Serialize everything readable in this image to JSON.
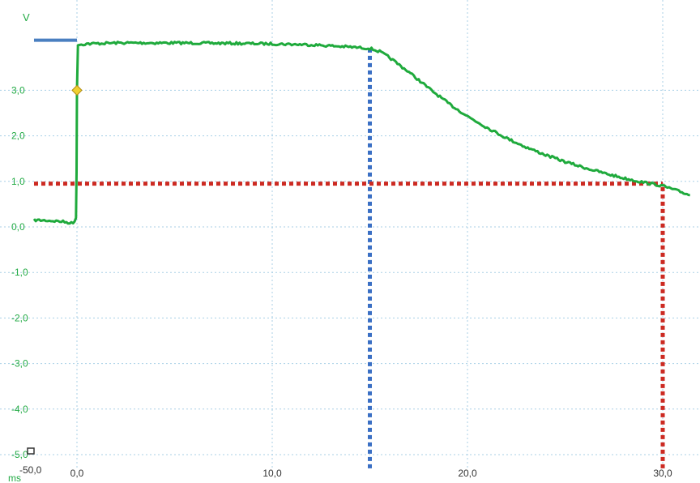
{
  "chart_data": {
    "type": "line",
    "title": "",
    "xlabel": "",
    "ylabel": "V",
    "y_unit_label": "V",
    "x_unit_label": "ms",
    "xlim": [
      -2.3,
      31.4
    ],
    "ylim": [
      -5.0,
      4.4
    ],
    "grid": true,
    "grid_style": "dotted",
    "x_ticks": [
      {
        "value": 0,
        "label": "0,0"
      },
      {
        "value": 10,
        "label": "10,0"
      },
      {
        "value": 20,
        "label": "20,0"
      },
      {
        "value": 30,
        "label": "30,0"
      }
    ],
    "x_origin_label": "-50,0",
    "y_ticks": [
      {
        "value": 3,
        "label": "3,0"
      },
      {
        "value": 2,
        "label": "2,0"
      },
      {
        "value": 1,
        "label": "1,0"
      },
      {
        "value": 0,
        "label": "0,0"
      },
      {
        "value": -1,
        "label": "-1,0"
      },
      {
        "value": -2,
        "label": "-2,0"
      },
      {
        "value": -3,
        "label": "-3,0"
      },
      {
        "value": -4,
        "label": "-4,0"
      },
      {
        "value": -5,
        "label": "-5,0"
      }
    ],
    "series": [
      {
        "color": "#1faa3c",
        "points": [
          [
            -2.2,
            0.15
          ],
          [
            -1.5,
            0.14
          ],
          [
            -0.8,
            0.12
          ],
          [
            -0.2,
            0.08
          ],
          [
            -0.05,
            0.2
          ],
          [
            -0.02,
            1.2
          ],
          [
            0.0,
            3.0
          ],
          [
            0.05,
            4.0
          ],
          [
            0.5,
            4.02
          ],
          [
            2.0,
            4.04
          ],
          [
            5.0,
            4.04
          ],
          [
            8.0,
            4.03
          ],
          [
            10.0,
            4.02
          ],
          [
            12.0,
            4.0
          ],
          [
            14.0,
            3.95
          ],
          [
            15.0,
            3.92
          ],
          [
            15.5,
            3.85
          ],
          [
            16.0,
            3.72
          ],
          [
            17.0,
            3.4
          ],
          [
            18.0,
            3.05
          ],
          [
            19.0,
            2.72
          ],
          [
            20.0,
            2.43
          ],
          [
            21.0,
            2.18
          ],
          [
            22.0,
            1.95
          ],
          [
            23.0,
            1.75
          ],
          [
            24.0,
            1.58
          ],
          [
            25.0,
            1.43
          ],
          [
            26.0,
            1.3
          ],
          [
            27.0,
            1.18
          ],
          [
            28.0,
            1.07
          ],
          [
            29.0,
            0.98
          ],
          [
            30.0,
            0.9
          ],
          [
            31.4,
            0.7
          ]
        ]
      }
    ],
    "trigger_level_line": {
      "from_x": -2.2,
      "to_x": 0.0,
      "y": 4.1,
      "color": "#4a7fc0"
    },
    "trigger_marker": {
      "x": 0.0,
      "y": 3.0,
      "color": "#f0d030"
    },
    "cursors": [
      {
        "axis": "x",
        "value": 15.0,
        "color": "#3a6fc4",
        "from_y": -5.3,
        "to_y": 3.95
      },
      {
        "axis": "y",
        "value": 0.95,
        "color": "#cc2a22",
        "from_x": -2.2,
        "to_x": 30.0
      },
      {
        "axis": "x",
        "value": 30.0,
        "color": "#cc2a22",
        "from_y": -5.3,
        "to_y": 0.95
      }
    ],
    "colors": {
      "grid": "#a8cfe6",
      "signal": "#1faa3c",
      "y_tick_labels": "#22aa44",
      "x_tick_labels": "#333333"
    }
  }
}
